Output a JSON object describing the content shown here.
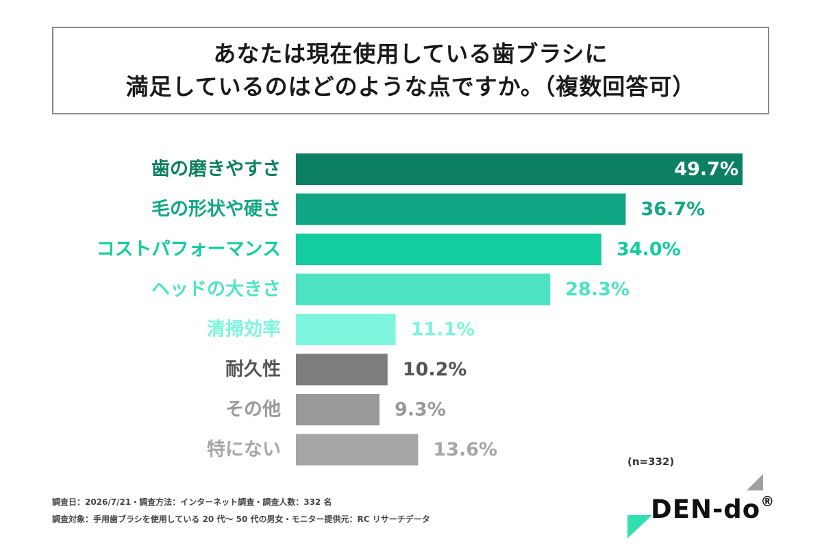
{
  "title": {
    "line1": "あなたは現在使用している歯ブラシに",
    "line2": "満足しているのはどのような点ですか。（複数回答可）"
  },
  "chart_data": {
    "type": "bar",
    "orientation": "horizontal",
    "categories": [
      "歯の磨きやすさ",
      "毛の形状や硬さ",
      "コストパフォーマンス",
      "ヘッドの大きさ",
      "清掃効率",
      "耐久性",
      "その他",
      "特にない"
    ],
    "values": [
      49.7,
      36.7,
      34.0,
      28.3,
      11.1,
      10.2,
      9.3,
      13.6
    ],
    "value_labels": [
      "49.7%",
      "36.7%",
      "34.0%",
      "28.3%",
      "11.1%",
      "10.2%",
      "9.3%",
      "13.6%"
    ],
    "unit": "%",
    "xlim": [
      0,
      49.7
    ],
    "grid": false,
    "colors": [
      "#0d7f63",
      "#12a784",
      "#13cca0",
      "#4ee3c3",
      "#7ef5dd",
      "#7d7d7d",
      "#999999",
      "#a6a6a6"
    ],
    "label_colors": [
      "#0d7f63",
      "#12a784",
      "#13cca0",
      "#4ee3c3",
      "#7ef5dd",
      "#555555",
      "#999999",
      "#a6a6a6"
    ]
  },
  "sample_size": "(n=332)",
  "footer": {
    "line1": "調査日：2026/7/21・調査方法：インターネット調査・調査人数：332 名",
    "line2": "調査対象：手用歯ブラシを使用している 20 代〜 50 代の男女・モニター提供元：RC リサーチデータ"
  },
  "logo": {
    "text": "DEN-do",
    "mark": "®",
    "accent_color": "#2fe0b0",
    "corner_color": "#a0a0a0"
  }
}
